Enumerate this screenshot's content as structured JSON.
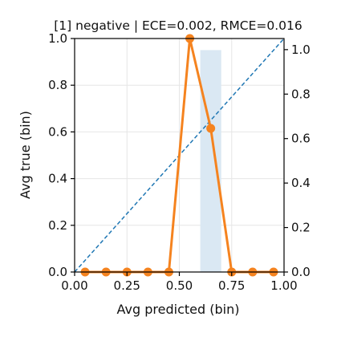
{
  "chart_data": {
    "type": "line",
    "title": "[1] negative | ECE=0.002, RMCE=0.016",
    "xlabel": "Avg predicted (bin)",
    "ylabel": "Avg true (bin)",
    "xlim": [
      0,
      1
    ],
    "ylim": [
      0,
      1
    ],
    "y2lim": [
      0,
      1.05
    ],
    "grid": true,
    "x_ticks": [
      "0.00",
      "0.25",
      "0.50",
      "0.75",
      "1.00"
    ],
    "y_ticks": [
      "0.0",
      "0.2",
      "0.4",
      "0.6",
      "0.8",
      "1.0"
    ],
    "y2_ticks": [
      "0.0",
      "0.2",
      "0.4",
      "0.6",
      "0.8",
      "1.0"
    ],
    "series": [
      {
        "type": "line",
        "color": "#f5831f",
        "x": [
          0.05,
          0.15,
          0.25,
          0.35,
          0.45,
          0.55,
          0.65,
          0.75,
          0.85,
          0.95
        ],
        "y": [
          0.0,
          0.0,
          0.0,
          0.0,
          0.0,
          1.0,
          0.615,
          0.0,
          0.0,
          0.0
        ]
      },
      {
        "type": "bar",
        "axis": "right",
        "color": "#dae8f3",
        "x0": 0.6,
        "x1": 0.7,
        "value": 0.998
      },
      {
        "type": "reference-line",
        "style": "dashed",
        "color": "#1f77b4",
        "x": [
          0,
          1
        ],
        "y": [
          0,
          1
        ]
      }
    ]
  }
}
